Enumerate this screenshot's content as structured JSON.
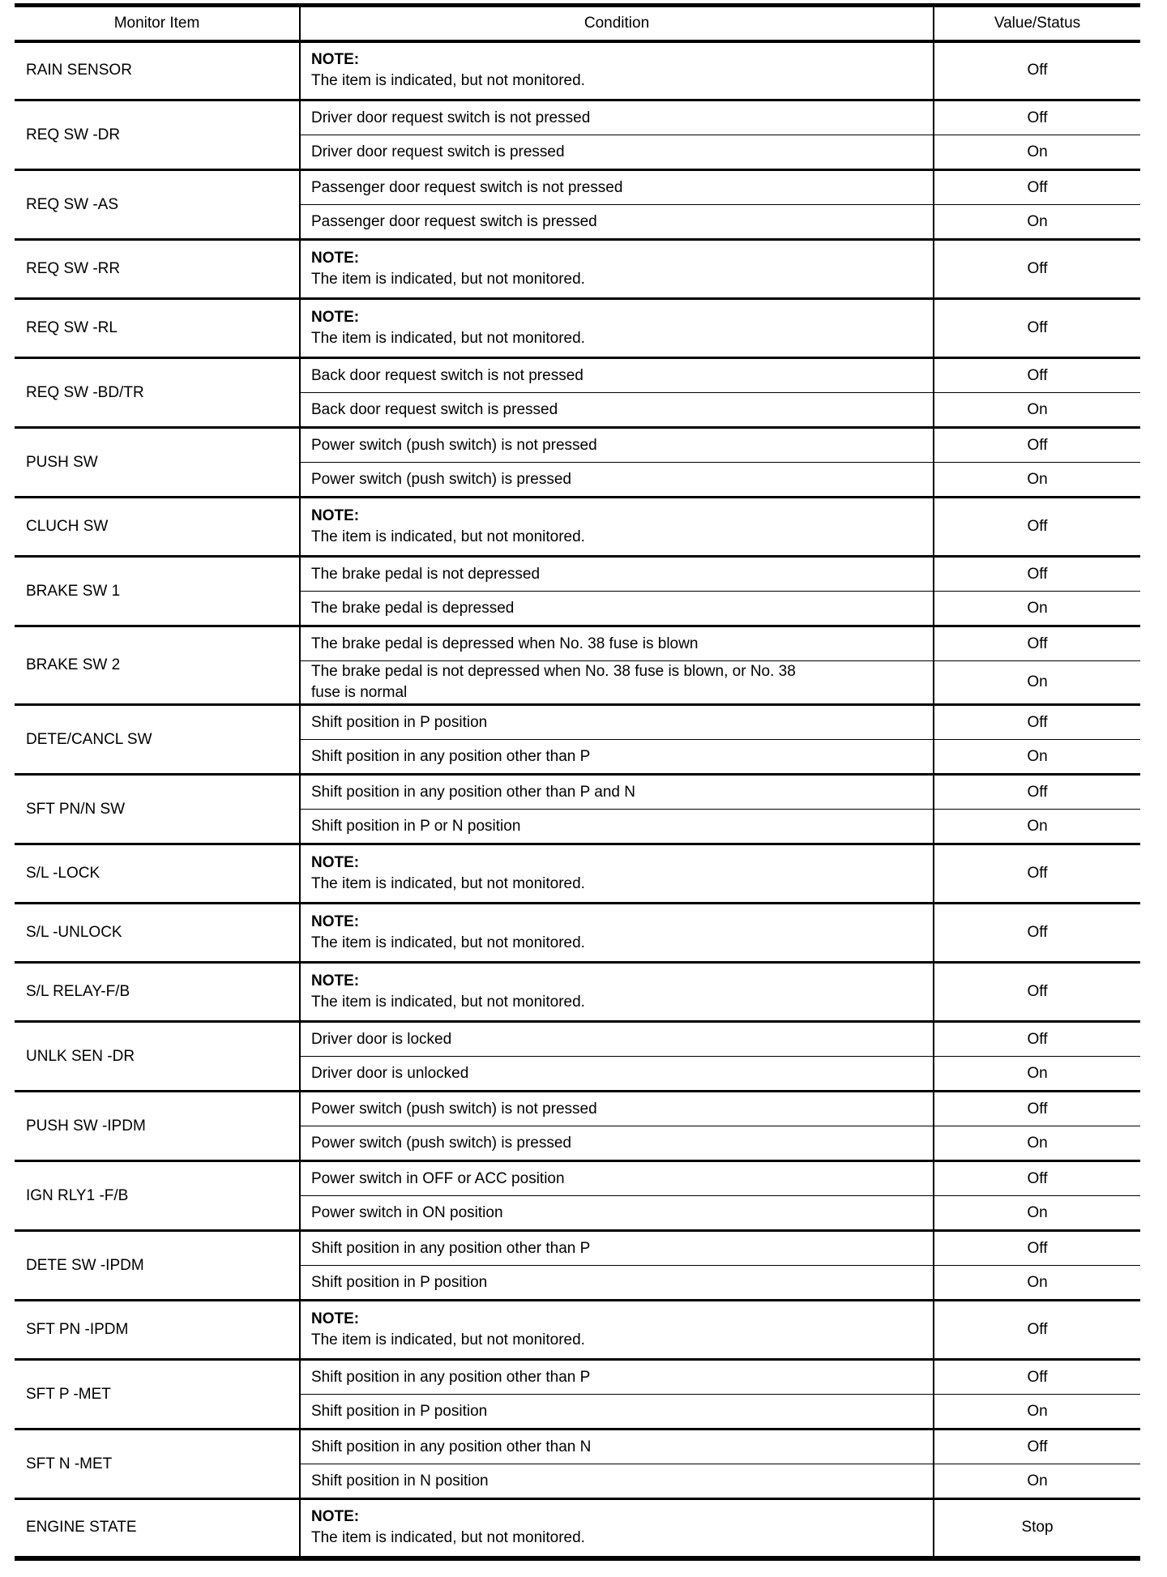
{
  "table": {
    "headers": [
      "Monitor Item",
      "Condition",
      "Value/Status"
    ],
    "note_label": "NOTE:",
    "note_text": "The item is indicated, but not monitored.",
    "groups": [
      {
        "item": "RAIN SENSOR",
        "rows": [
          {
            "note": true,
            "value": "Off"
          }
        ]
      },
      {
        "item": "REQ SW -DR",
        "rows": [
          {
            "condition": "Driver door request switch is not pressed",
            "value": "Off"
          },
          {
            "condition": "Driver door request switch is pressed",
            "value": "On"
          }
        ]
      },
      {
        "item": "REQ SW -AS",
        "rows": [
          {
            "condition": "Passenger door request switch is not pressed",
            "value": "Off"
          },
          {
            "condition": "Passenger door request switch is pressed",
            "value": "On"
          }
        ]
      },
      {
        "item": "REQ SW -RR",
        "rows": [
          {
            "note": true,
            "value": "Off"
          }
        ]
      },
      {
        "item": "REQ SW -RL",
        "rows": [
          {
            "note": true,
            "value": "Off"
          }
        ]
      },
      {
        "item": "REQ SW -BD/TR",
        "rows": [
          {
            "condition": "Back door request switch is not pressed",
            "value": "Off"
          },
          {
            "condition": "Back door request switch is pressed",
            "value": "On"
          }
        ]
      },
      {
        "item": "PUSH SW",
        "rows": [
          {
            "condition": "Power switch (push switch) is not pressed",
            "value": "Off"
          },
          {
            "condition": "Power switch (push switch) is pressed",
            "value": "On"
          }
        ]
      },
      {
        "item": "CLUCH SW",
        "rows": [
          {
            "note": true,
            "value": "Off"
          }
        ]
      },
      {
        "item": "BRAKE SW 1",
        "rows": [
          {
            "condition": "The brake pedal is not depressed",
            "value": "Off"
          },
          {
            "condition": "The brake pedal is depressed",
            "value": "On"
          }
        ]
      },
      {
        "item": "BRAKE SW 2",
        "rows": [
          {
            "condition": "The brake pedal is depressed when No. 38 fuse is blown",
            "value": "Off"
          },
          {
            "condition": "The brake pedal is not depressed when No. 38 fuse is blown, or No. 38\nfuse is normal",
            "value": "On"
          }
        ]
      },
      {
        "item": "DETE/CANCL SW",
        "rows": [
          {
            "condition": "Shift position in P position",
            "value": "Off"
          },
          {
            "condition": "Shift position in any position other than P",
            "value": "On"
          }
        ]
      },
      {
        "item": "SFT PN/N SW",
        "rows": [
          {
            "condition": "Shift position in any position other than P and N",
            "value": "Off"
          },
          {
            "condition": "Shift position in P or N position",
            "value": "On"
          }
        ]
      },
      {
        "item": "S/L -LOCK",
        "rows": [
          {
            "note": true,
            "value": "Off"
          }
        ]
      },
      {
        "item": "S/L -UNLOCK",
        "rows": [
          {
            "note": true,
            "value": "Off"
          }
        ]
      },
      {
        "item": "S/L RELAY-F/B",
        "rows": [
          {
            "note": true,
            "value": "Off"
          }
        ]
      },
      {
        "item": "UNLK SEN -DR",
        "rows": [
          {
            "condition": "Driver door is locked",
            "value": "Off"
          },
          {
            "condition": "Driver door is unlocked",
            "value": "On"
          }
        ]
      },
      {
        "item": "PUSH SW -IPDM",
        "rows": [
          {
            "condition": "Power switch (push switch) is not pressed",
            "value": "Off"
          },
          {
            "condition": "Power switch (push switch) is pressed",
            "value": "On"
          }
        ]
      },
      {
        "item": "IGN RLY1 -F/B",
        "rows": [
          {
            "condition": "Power switch in OFF or ACC position",
            "value": "Off"
          },
          {
            "condition": "Power switch in ON position",
            "value": "On"
          }
        ]
      },
      {
        "item": "DETE SW -IPDM",
        "rows": [
          {
            "condition": "Shift position in any position other than P",
            "value": "Off"
          },
          {
            "condition": "Shift position in P position",
            "value": "On"
          }
        ]
      },
      {
        "item": "SFT PN -IPDM",
        "rows": [
          {
            "note": true,
            "value": "Off"
          }
        ]
      },
      {
        "item": "SFT P -MET",
        "rows": [
          {
            "condition": "Shift position in any position other than P",
            "value": "Off"
          },
          {
            "condition": "Shift position in P position",
            "value": "On"
          }
        ]
      },
      {
        "item": "SFT N -MET",
        "rows": [
          {
            "condition": "Shift position in any position other than N",
            "value": "Off"
          },
          {
            "condition": "Shift position in N position",
            "value": "On"
          }
        ]
      },
      {
        "item": "ENGINE STATE",
        "rows": [
          {
            "note": true,
            "value": "Stop"
          }
        ]
      }
    ]
  }
}
